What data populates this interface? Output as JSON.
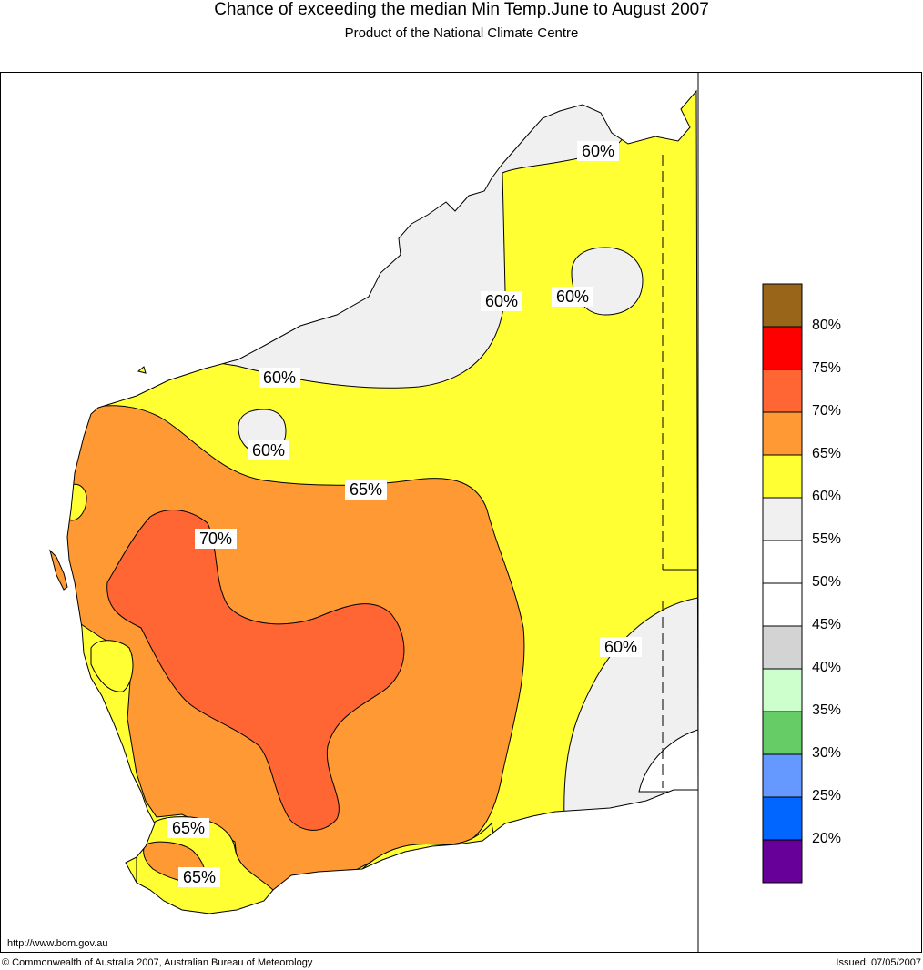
{
  "header": {
    "title": "Chance of exceeding the median Min Temp.June to August 2007",
    "subtitle": "Product of the National Climate Centre"
  },
  "map": {
    "region": "Western Australia",
    "contour_labels": [
      "60%",
      "60%",
      "60%",
      "60%",
      "60%",
      "65%",
      "70%",
      "65%",
      "65%",
      "60%"
    ],
    "zone_colors": {
      "55-60": "#f0f0f0",
      "60-65": "#ffff33",
      "65-70": "#ff9933",
      "70-75": "#ff6633"
    }
  },
  "legend": {
    "bands": [
      {
        "color": "#996619"
      },
      {
        "color": "#ff0000"
      },
      {
        "color": "#ff6633"
      },
      {
        "color": "#ff9933"
      },
      {
        "color": "#ffff33"
      },
      {
        "color": "#f0f0f0"
      },
      {
        "color": "#ffffff"
      },
      {
        "color": "#ffffff"
      },
      {
        "color": "#d3d3d3"
      },
      {
        "color": "#ccffcc"
      },
      {
        "color": "#66cc66"
      },
      {
        "color": "#6699ff"
      },
      {
        "color": "#0066ff"
      },
      {
        "color": "#660099"
      }
    ],
    "labels": [
      "80%",
      "75%",
      "70%",
      "65%",
      "60%",
      "55%",
      "50%",
      "45%",
      "40%",
      "35%",
      "30%",
      "25%",
      "20%"
    ]
  },
  "footer": {
    "url": "http://www.bom.gov.au",
    "copyright": "© Commonwealth of Australia 2007, Australian Bureau of Meteorology",
    "issued": "Issued: 07/05/2007"
  }
}
